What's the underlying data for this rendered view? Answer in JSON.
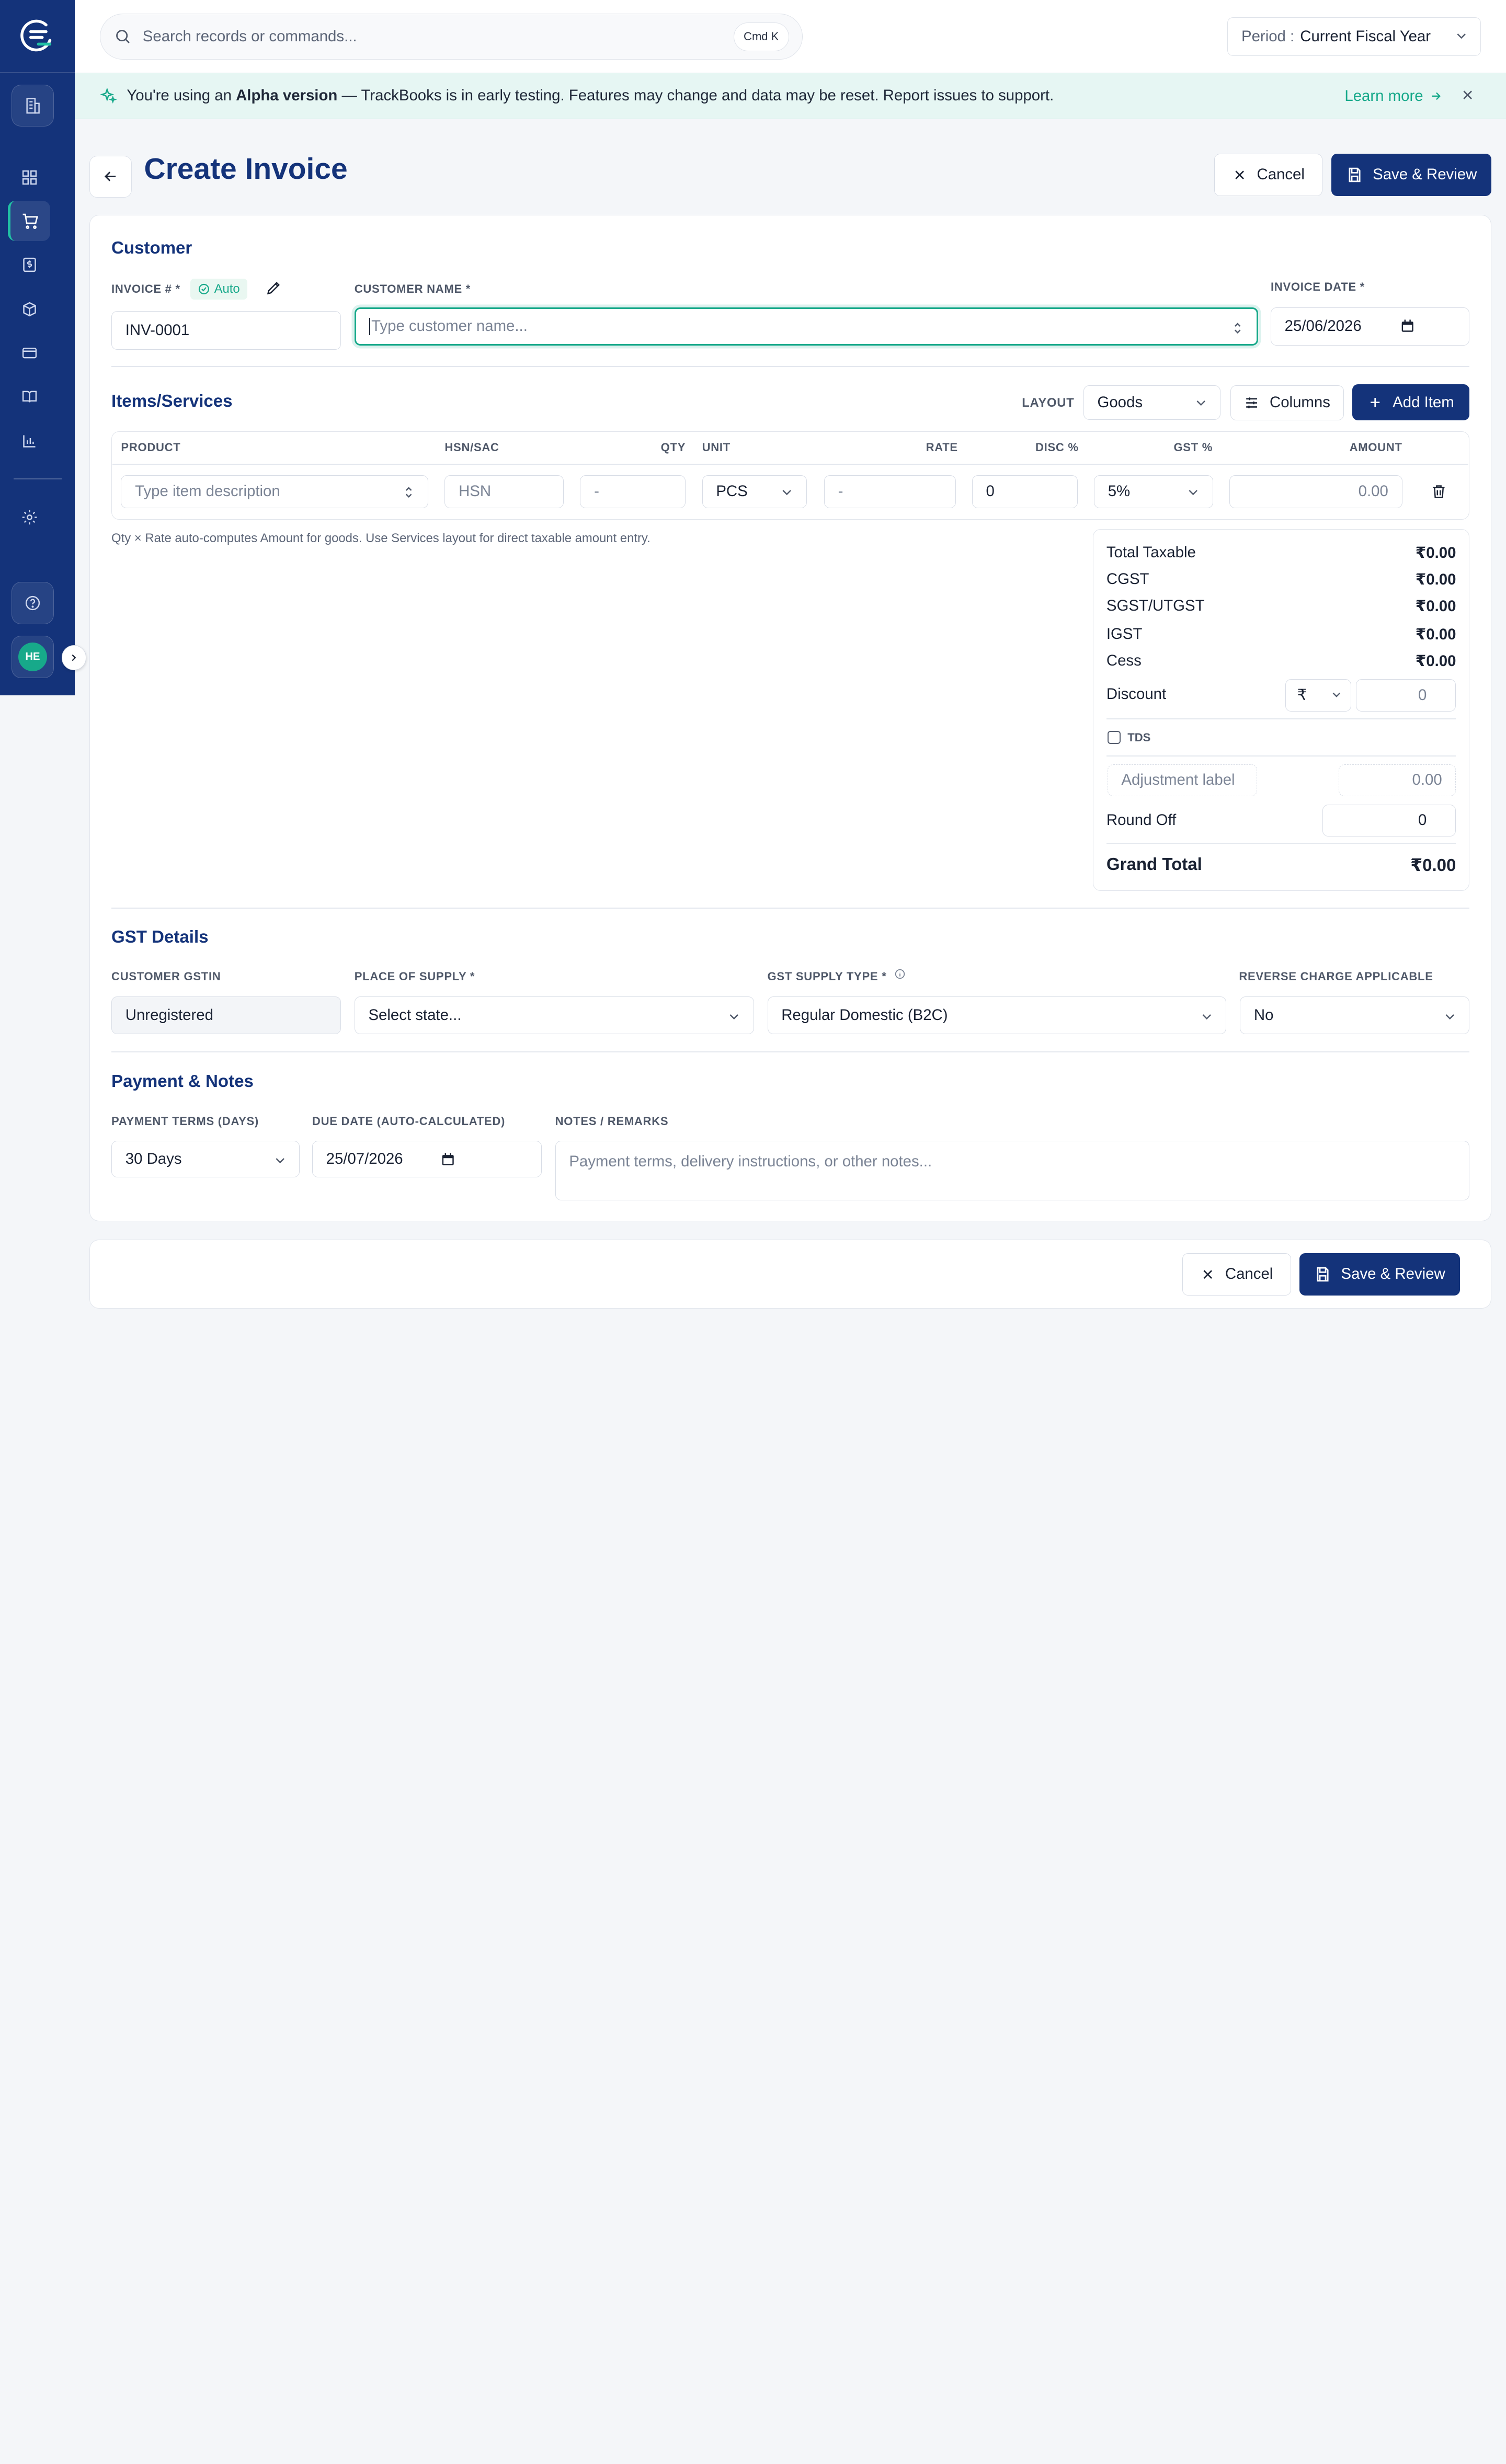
{
  "search": {
    "placeholder": "Search records or commands...",
    "shortcut": "Cmd K"
  },
  "period": {
    "label": "Period :",
    "value": "Current Fiscal Year"
  },
  "banner": {
    "prefix": "You're using an ",
    "highlight": "Alpha version",
    "suffix": " — TrackBooks is in early testing. Features may change and data may be reset. Report issues to support.",
    "learn_more": "Learn more"
  },
  "sidebar": {
    "avatar_initials": "HE"
  },
  "page": {
    "title": "Create Invoice",
    "cancel_label": "Cancel",
    "save_label": "Save & Review"
  },
  "customer": {
    "section_title": "Customer",
    "invoice_label": "INVOICE # *",
    "auto_badge": "Auto",
    "invoice_value": "INV-0001",
    "customer_name_label": "CUSTOMER NAME *",
    "customer_name_placeholder": "Type customer name...",
    "invoice_date_label": "INVOICE DATE *",
    "invoice_date_value": "25/06/2026"
  },
  "items": {
    "section_title": "Items/Services",
    "layout_label": "LAYOUT",
    "layout_value": "Goods",
    "columns_label": "Columns",
    "add_item_label": "Add Item",
    "headers": {
      "product": "PRODUCT",
      "hsn": "HSN/SAC",
      "qty": "QTY",
      "unit": "UNIT",
      "rate": "RATE",
      "disc": "DISC %",
      "gst": "GST %",
      "amount": "AMOUNT"
    },
    "row": {
      "product_placeholder": "Type item description",
      "hsn_placeholder": "HSN",
      "qty_placeholder": "-",
      "unit_value": "PCS",
      "rate_placeholder": "-",
      "disc_value": "0",
      "gst_value": "5%",
      "amount_value": "0.00"
    },
    "note": "Qty × Rate auto-computes Amount for goods. Use Services layout for direct taxable amount entry."
  },
  "summary": {
    "total_taxable_label": "Total Taxable",
    "total_taxable": "₹0.00",
    "cgst_label": "CGST",
    "cgst": "₹0.00",
    "sgst_label": "SGST/UTGST",
    "sgst": "₹0.00",
    "igst_label": "IGST",
    "igst": "₹0.00",
    "cess_label": "Cess",
    "cess": "₹0.00",
    "discount_label": "Discount",
    "discount_type": "₹",
    "discount_value": "0",
    "tds_label": "TDS",
    "adjustment_placeholder": "Adjustment label",
    "adjustment_value": "0.00",
    "round_off_label": "Round Off",
    "round_off_value": "0",
    "grand_total_label": "Grand Total",
    "grand_total": "₹0.00"
  },
  "gst": {
    "section_title": "GST Details",
    "gstin_label": "CUSTOMER GSTIN",
    "gstin_value": "Unregistered",
    "place_label": "PLACE OF SUPPLY *",
    "place_placeholder": "Select state...",
    "supply_type_label": "GST SUPPLY TYPE *",
    "supply_type_value": "Regular Domestic (B2C)",
    "reverse_label": "REVERSE CHARGE APPLICABLE",
    "reverse_value": "No"
  },
  "payment": {
    "section_title": "Payment & Notes",
    "terms_label": "PAYMENT TERMS (DAYS)",
    "terms_value": "30 Days",
    "due_label": "DUE DATE (AUTO-CALCULATED)",
    "due_value": "25/07/2026",
    "notes_label": "NOTES / REMARKS",
    "notes_placeholder": "Payment terms, delivery instructions, or other notes..."
  },
  "colors": {
    "primary": "#14337a",
    "accent": "#17a98a",
    "banner_bg": "#e6f6f3"
  }
}
